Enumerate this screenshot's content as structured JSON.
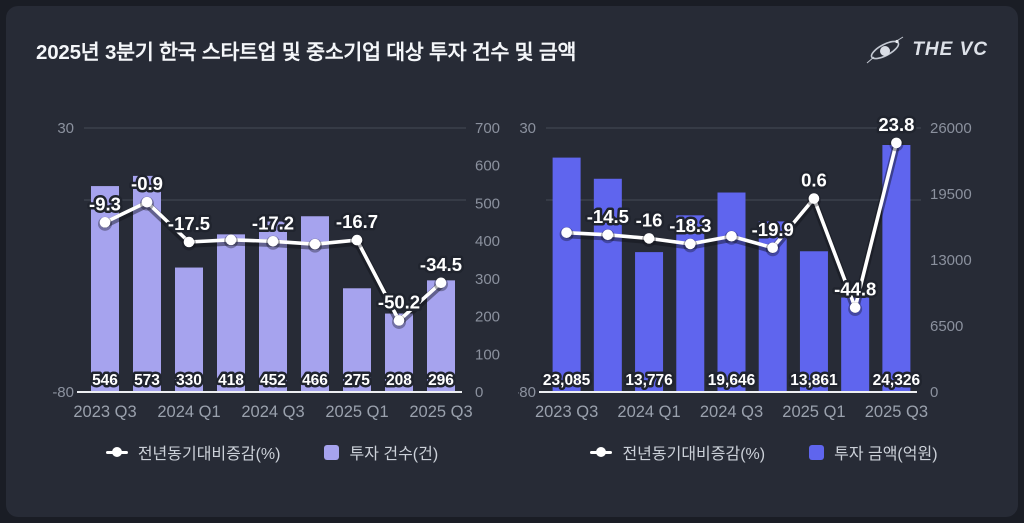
{
  "header": {
    "title": "2025년 3분기 한국 스타트업 및 중소기업 대상 투자 건수 및 금액",
    "brand": "THE VC"
  },
  "colors": {
    "background": "#272b36",
    "outer_background": "#1a1d25",
    "count_bar": "#a6a3ee",
    "amount_bar": "#5f65ee",
    "line": "#ffffff",
    "gridline": "#454b57",
    "baseline": "#eceef1",
    "axis_text": "#8b919e",
    "x_label_text": "#9aa1ad",
    "legend_text": "#ccd1d9"
  },
  "chart_data": [
    {
      "type": "bar",
      "x": [
        "2023 Q3",
        "2023 Q4",
        "2024 Q1",
        "2024 Q2",
        "2024 Q3",
        "2024 Q4",
        "2025 Q1",
        "2025 Q2",
        "2025 Q3"
      ],
      "x_tick_labels": [
        "2023 Q3",
        "2024 Q1",
        "2024 Q3",
        "2025 Q1",
        "2025 Q3"
      ],
      "bar_series": {
        "name": "투자 건수(건)",
        "axis": "right",
        "color": "#a6a3ee",
        "values": [
          546,
          573,
          330,
          418,
          452,
          466,
          275,
          208,
          296
        ],
        "labels": [
          "546",
          "573",
          "330",
          "418",
          "452",
          "466",
          "275",
          "208",
          "296"
        ]
      },
      "line_series": {
        "name": "전년동기대비증감(%)",
        "axis": "left",
        "color": "#ffffff",
        "values": [
          -9.3,
          -0.9,
          -17.5,
          -16.6,
          -17.2,
          -18.4,
          -16.7,
          -50.2,
          -34.5
        ],
        "labels": [
          "-9.3",
          "-0.9",
          "-17.5",
          null,
          "-17.2",
          null,
          "-16.7",
          "-50.2",
          "-34.5"
        ]
      },
      "left_axis": {
        "min": -80,
        "max": 30,
        "tick_labels": [
          "30",
          "-80"
        ]
      },
      "right_axis": {
        "min": 0,
        "max": 700,
        "tick_labels": [
          "700",
          "600",
          "500",
          "400",
          "300",
          "200",
          "100",
          "0"
        ]
      },
      "gridlines_at_left_axis": [
        30,
        0
      ],
      "legend": [
        {
          "marker": "line-dot",
          "label": "전년동기대비증감(%)",
          "color": "#ffffff"
        },
        {
          "marker": "square",
          "label": "투자 건수(건)",
          "color": "#a6a3ee"
        }
      ]
    },
    {
      "type": "bar",
      "x": [
        "2023 Q3",
        "2023 Q4",
        "2024 Q1",
        "2024 Q2",
        "2024 Q3",
        "2024 Q4",
        "2025 Q1",
        "2025 Q2",
        "2025 Q3"
      ],
      "x_tick_labels": [
        "2023 Q3",
        "2024 Q1",
        "2024 Q3",
        "2025 Q1",
        "2025 Q3"
      ],
      "bar_series": {
        "name": "투자 금액(억원)",
        "axis": "right",
        "color": "#5f65ee",
        "values": [
          23085,
          21000,
          13776,
          17400,
          19646,
          16800,
          13861,
          9300,
          24326
        ],
        "labels": [
          "23,085",
          null,
          "13,776",
          null,
          "19,646",
          null,
          "13,861",
          null,
          "24,326"
        ]
      },
      "line_series": {
        "name": "전년동기대비증감(%)",
        "axis": "left",
        "color": "#ffffff",
        "values": [
          -13.6,
          -14.5,
          -16,
          -18.3,
          -15.1,
          -19.9,
          0.6,
          -44.8,
          23.8
        ],
        "labels": [
          null,
          "-14.5",
          "-16",
          "-18.3",
          null,
          "-19.9",
          "0.6",
          "-44.8",
          "23.8"
        ]
      },
      "left_axis": {
        "min": -80,
        "max": 30,
        "tick_labels": [
          "30",
          "-80"
        ]
      },
      "right_axis": {
        "min": 0,
        "max": 26000,
        "tick_labels": [
          "26000",
          "19500",
          "13000",
          "6500",
          "0"
        ]
      },
      "gridlines_at_left_axis": [
        30,
        0
      ],
      "legend": [
        {
          "marker": "line-dot",
          "label": "전년동기대비증감(%)",
          "color": "#ffffff"
        },
        {
          "marker": "square",
          "label": "투자 금액(억원)",
          "color": "#5f65ee"
        }
      ]
    }
  ]
}
